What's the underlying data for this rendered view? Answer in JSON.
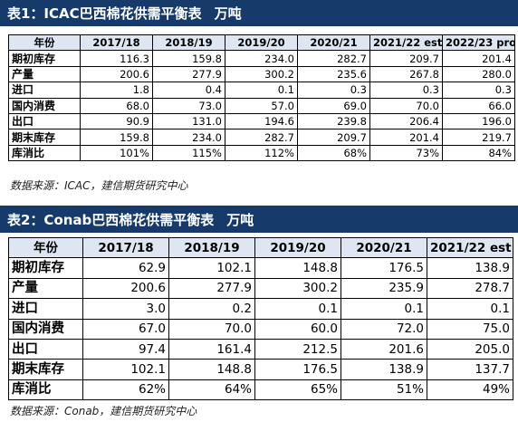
{
  "table1": {
    "title": "表1：ICAC巴西棉花供需平衡表",
    "unit": "万吨",
    "columns": [
      "年份",
      "2017/18",
      "2018/19",
      "2019/20",
      "2020/21",
      "2021/22 est",
      "2022/23 proj"
    ],
    "rows": [
      [
        "期初库存",
        "116.3",
        "159.8",
        "234.0",
        "282.7",
        "209.7",
        "201.4"
      ],
      [
        "产量",
        "200.6",
        "277.9",
        "300.2",
        "235.6",
        "267.8",
        "280.0"
      ],
      [
        "进口",
        "1.8",
        "0.4",
        "0.1",
        "0.3",
        "0.3",
        "0.3"
      ],
      [
        "国内消费",
        "68.0",
        "73.0",
        "57.0",
        "69.0",
        "70.0",
        "66.0"
      ],
      [
        "出口",
        "90.9",
        "131.0",
        "194.6",
        "239.8",
        "206.4",
        "196.0"
      ],
      [
        "期末库存",
        "159.8",
        "234.0",
        "282.7",
        "209.7",
        "201.4",
        "219.7"
      ],
      [
        "库消比",
        "101%",
        "115%",
        "112%",
        "68%",
        "73%",
        "84%"
      ]
    ],
    "source": "数据来源：ICAC，建信期货研究中心"
  },
  "table2": {
    "title": "表2：Conab巴西棉花供需平衡表",
    "unit": "万吨",
    "columns": [
      "年份",
      "2017/18",
      "2018/19",
      "2019/20",
      "2020/21",
      "2021/22 est"
    ],
    "rows": [
      [
        "期初库存",
        "62.9",
        "102.1",
        "148.8",
        "176.5",
        "138.9"
      ],
      [
        "产量",
        "200.6",
        "277.9",
        "300.2",
        "235.9",
        "278.7"
      ],
      [
        "进口",
        "3.0",
        "0.2",
        "0.1",
        "0.1",
        "0.1"
      ],
      [
        "国内消费",
        "67.0",
        "70.0",
        "60.0",
        "72.0",
        "75.0"
      ],
      [
        "出口",
        "97.4",
        "161.4",
        "212.5",
        "201.6",
        "205.0"
      ],
      [
        "期末库存",
        "102.1",
        "148.8",
        "176.5",
        "138.9",
        "137.7"
      ],
      [
        "库消比",
        "62%",
        "64%",
        "65%",
        "51%",
        "49%"
      ]
    ],
    "source": "数据来源：Conab，建信期货研究中心"
  }
}
